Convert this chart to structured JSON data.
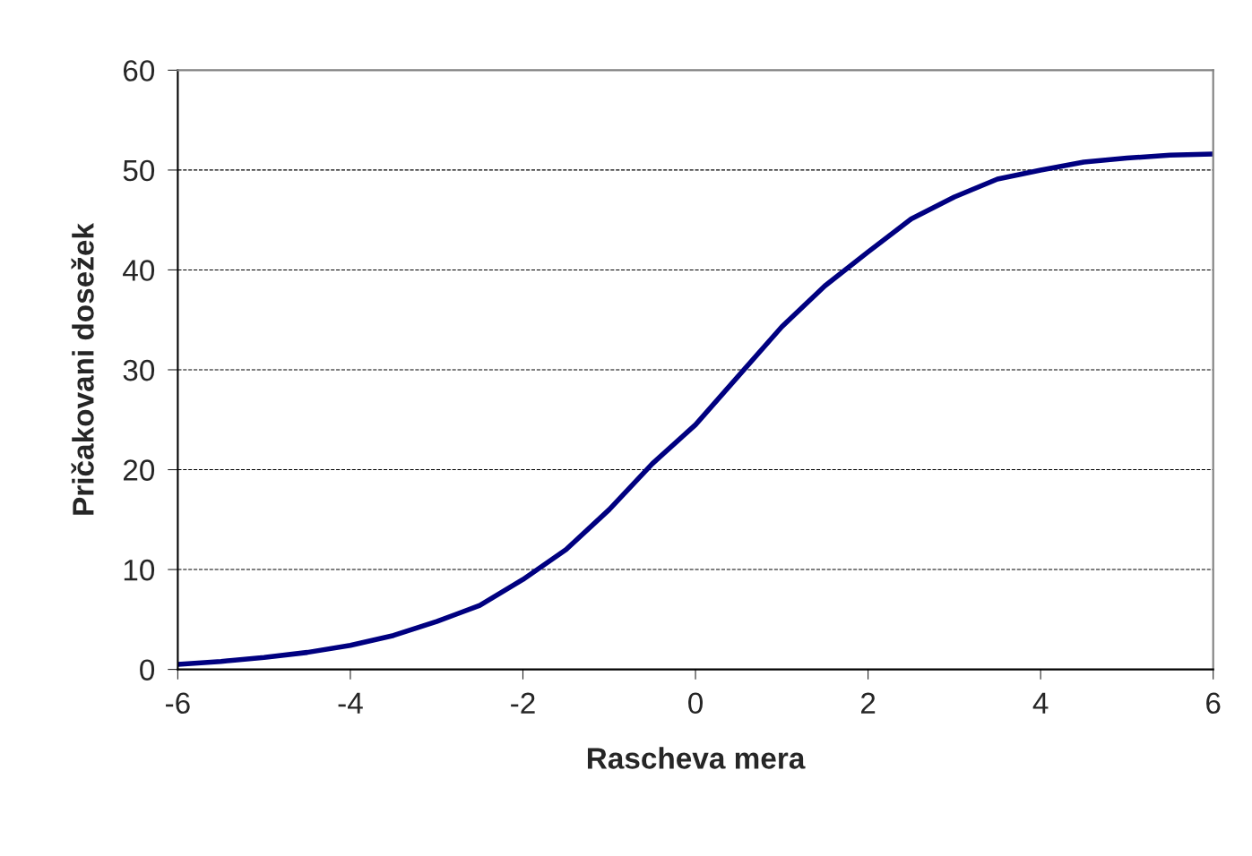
{
  "chart_data": {
    "type": "line",
    "xlabel": "Rascheva mera",
    "ylabel": "Pričakovani dosežek",
    "x": [
      -6,
      -5.5,
      -5,
      -4.5,
      -4,
      -3.5,
      -3,
      -2.5,
      -2,
      -1.5,
      -1,
      -0.5,
      0,
      0.5,
      1,
      1.5,
      2,
      2.5,
      3,
      3.5,
      4,
      4.5,
      5,
      5.5,
      6
    ],
    "series": [
      {
        "color": "#000080",
        "values": [
          0.5,
          0.8,
          1.2,
          1.7,
          2.4,
          3.4,
          4.8,
          6.4,
          9.0,
          12.0,
          16.0,
          20.6,
          24.5,
          29.4,
          34.3,
          38.4,
          41.8,
          45.1,
          47.3,
          49.1,
          50.0,
          50.8,
          51.2,
          51.5,
          51.6
        ]
      }
    ],
    "xlim": [
      -6,
      6
    ],
    "xticks": [
      -6,
      -4,
      -2,
      0,
      2,
      4,
      6
    ],
    "ylim": [
      0,
      60
    ],
    "yticks": [
      0,
      10,
      20,
      30,
      40,
      50,
      60
    ],
    "grid": "y",
    "line_style": "solid",
    "marker": "none"
  }
}
